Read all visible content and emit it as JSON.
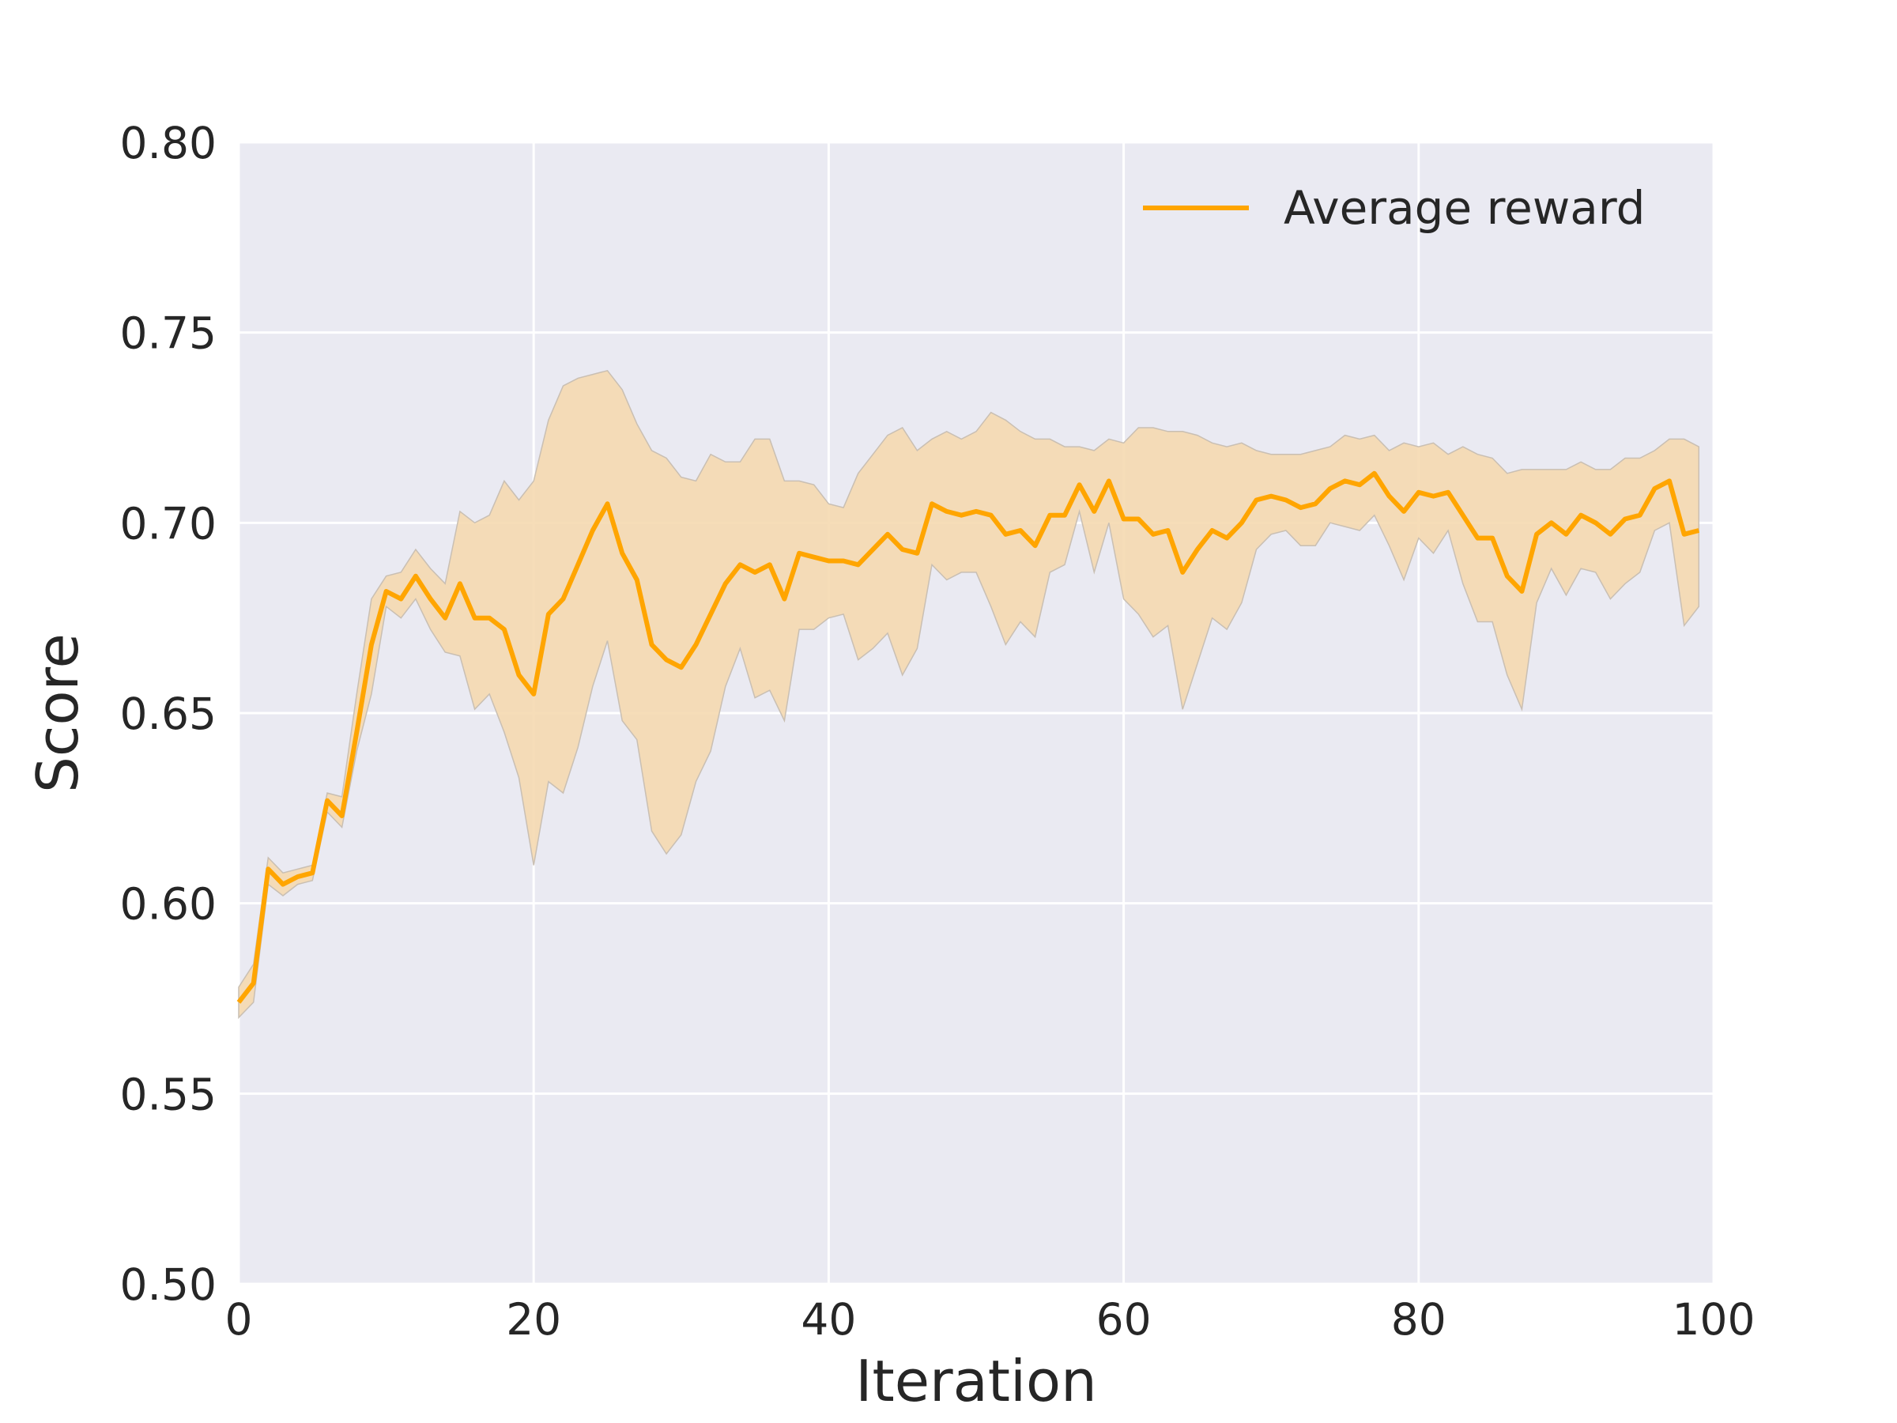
{
  "chart_data": {
    "type": "line",
    "title": "",
    "xlabel": "Iteration",
    "ylabel": "Score",
    "xlim": [
      0,
      100
    ],
    "ylim": [
      0.5,
      0.8
    ],
    "xticks": [
      "0",
      "20",
      "40",
      "60",
      "80",
      "100"
    ],
    "yticks": [
      "0.50",
      "0.55",
      "0.60",
      "0.65",
      "0.70",
      "0.75",
      "0.80"
    ],
    "grid": true,
    "legend_position": "top-right",
    "colors": {
      "background": "#eaeaf2",
      "grid": "#ffffff",
      "line": "#ffa500",
      "band": "#f5d9b0",
      "band_edge": "#c9bfb3"
    },
    "series": [
      {
        "name": "Average reward",
        "x": [
          0,
          1,
          2,
          3,
          4,
          5,
          6,
          7,
          8,
          9,
          10,
          11,
          12,
          13,
          14,
          15,
          16,
          17,
          18,
          19,
          20,
          21,
          22,
          23,
          24,
          25,
          26,
          27,
          28,
          29,
          30,
          31,
          32,
          33,
          34,
          35,
          36,
          37,
          38,
          39,
          40,
          41,
          42,
          43,
          44,
          45,
          46,
          47,
          48,
          49,
          50,
          51,
          52,
          53,
          54,
          55,
          56,
          57,
          58,
          59,
          60,
          61,
          62,
          63,
          64,
          65,
          66,
          67,
          68,
          69,
          70,
          71,
          72,
          73,
          74,
          75,
          76,
          77,
          78,
          79,
          80,
          81,
          82,
          83,
          84,
          85,
          86,
          87,
          88,
          89,
          90,
          91,
          92,
          93,
          94,
          95,
          96,
          97,
          98,
          99
        ],
        "y": [
          0.574,
          0.579,
          0.609,
          0.605,
          0.607,
          0.608,
          0.627,
          0.623,
          0.645,
          0.668,
          0.682,
          0.68,
          0.686,
          0.68,
          0.675,
          0.684,
          0.675,
          0.675,
          0.672,
          0.66,
          0.655,
          0.676,
          0.68,
          0.689,
          0.698,
          0.705,
          0.692,
          0.685,
          0.668,
          0.664,
          0.662,
          0.668,
          0.676,
          0.684,
          0.689,
          0.687,
          0.689,
          0.68,
          0.692,
          0.691,
          0.69,
          0.69,
          0.689,
          0.693,
          0.697,
          0.693,
          0.692,
          0.705,
          0.703,
          0.702,
          0.703,
          0.702,
          0.697,
          0.698,
          0.694,
          0.702,
          0.702,
          0.71,
          0.703,
          0.711,
          0.701,
          0.701,
          0.697,
          0.698,
          0.687,
          0.693,
          0.698,
          0.696,
          0.7,
          0.706,
          0.707,
          0.706,
          0.704,
          0.705,
          0.709,
          0.711,
          0.71,
          0.713,
          0.707,
          0.703,
          0.708,
          0.707,
          0.708,
          0.702,
          0.696,
          0.696,
          0.686,
          0.682,
          0.697,
          0.7,
          0.697,
          0.702,
          0.7,
          0.697,
          0.701,
          0.702,
          0.709,
          0.711,
          0.697,
          0.698
        ],
        "upper": [
          0.578,
          0.584,
          0.612,
          0.608,
          0.609,
          0.61,
          0.629,
          0.628,
          0.655,
          0.68,
          0.686,
          0.687,
          0.693,
          0.688,
          0.684,
          0.703,
          0.7,
          0.702,
          0.711,
          0.706,
          0.711,
          0.727,
          0.736,
          0.738,
          0.739,
          0.74,
          0.735,
          0.726,
          0.719,
          0.717,
          0.712,
          0.711,
          0.718,
          0.716,
          0.716,
          0.722,
          0.722,
          0.711,
          0.711,
          0.71,
          0.705,
          0.704,
          0.713,
          0.718,
          0.723,
          0.725,
          0.719,
          0.722,
          0.724,
          0.722,
          0.724,
          0.729,
          0.727,
          0.724,
          0.722,
          0.722,
          0.72,
          0.72,
          0.719,
          0.722,
          0.721,
          0.725,
          0.725,
          0.724,
          0.724,
          0.723,
          0.721,
          0.72,
          0.721,
          0.719,
          0.718,
          0.718,
          0.718,
          0.719,
          0.72,
          0.723,
          0.722,
          0.723,
          0.719,
          0.721,
          0.72,
          0.721,
          0.718,
          0.72,
          0.718,
          0.717,
          0.713,
          0.714,
          0.714,
          0.714,
          0.714,
          0.716,
          0.714,
          0.714,
          0.717,
          0.717,
          0.719,
          0.722,
          0.722,
          0.72
        ],
        "lower": [
          0.57,
          0.574,
          0.605,
          0.602,
          0.605,
          0.606,
          0.624,
          0.62,
          0.64,
          0.655,
          0.678,
          0.675,
          0.68,
          0.672,
          0.666,
          0.665,
          0.651,
          0.655,
          0.645,
          0.633,
          0.61,
          0.632,
          0.629,
          0.641,
          0.657,
          0.669,
          0.648,
          0.643,
          0.619,
          0.613,
          0.618,
          0.632,
          0.64,
          0.657,
          0.667,
          0.654,
          0.656,
          0.648,
          0.672,
          0.672,
          0.675,
          0.676,
          0.664,
          0.667,
          0.671,
          0.66,
          0.667,
          0.689,
          0.685,
          0.687,
          0.687,
          0.678,
          0.668,
          0.674,
          0.67,
          0.687,
          0.689,
          0.703,
          0.687,
          0.7,
          0.68,
          0.676,
          0.67,
          0.673,
          0.651,
          0.663,
          0.675,
          0.672,
          0.679,
          0.693,
          0.697,
          0.698,
          0.694,
          0.694,
          0.7,
          0.699,
          0.698,
          0.702,
          0.694,
          0.685,
          0.696,
          0.692,
          0.698,
          0.684,
          0.674,
          0.674,
          0.66,
          0.651,
          0.679,
          0.688,
          0.681,
          0.688,
          0.687,
          0.68,
          0.684,
          0.687,
          0.698,
          0.7,
          0.673,
          0.678
        ]
      }
    ]
  }
}
